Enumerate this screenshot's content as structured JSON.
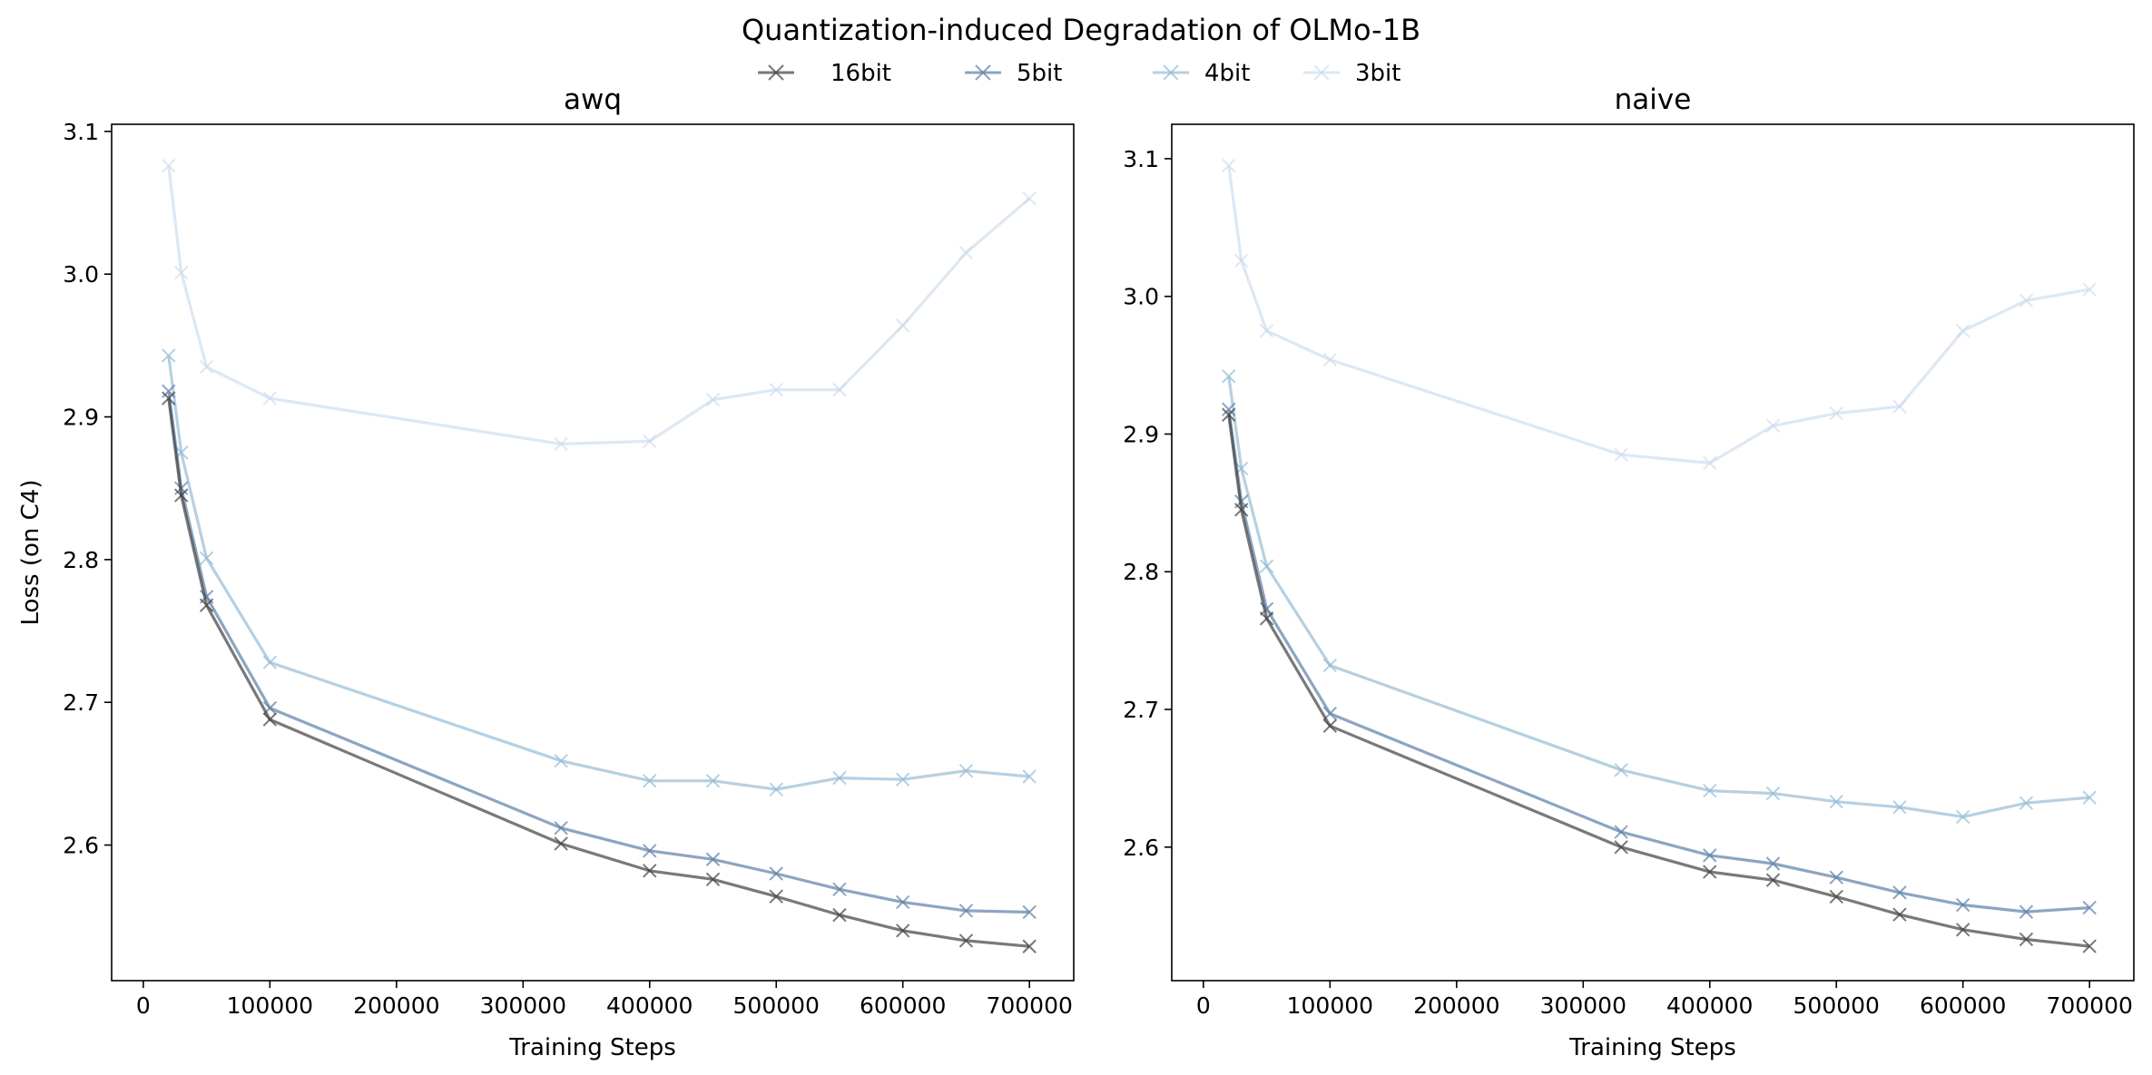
{
  "suptitle": "Quantization-induced Degradation of OLMo-1B",
  "legend": [
    {
      "label": "16bit",
      "color": "#404040",
      "opacity": 0.7
    },
    {
      "label": "5bit",
      "color": "#5b7fa6",
      "opacity": 0.7
    },
    {
      "label": "4bit",
      "color": "#8fb7d3",
      "opacity": 0.65
    },
    {
      "label": "3bit",
      "color": "#c6d9ec",
      "opacity": 0.6
    }
  ],
  "chart_data": [
    {
      "type": "line",
      "title": "awq",
      "xlabel": "Training Steps",
      "ylabel": "Loss (on C4)",
      "xlim": [
        -25000,
        735000
      ],
      "ylim": [
        2.505,
        3.105
      ],
      "xticks": [
        0,
        100000,
        200000,
        300000,
        400000,
        500000,
        600000,
        700000
      ],
      "xtick_labels": [
        "0",
        "100000",
        "200000",
        "300000",
        "400000",
        "500000",
        "600000",
        "700000"
      ],
      "yticks": [
        2.6,
        2.7,
        2.8,
        2.9,
        3.0,
        3.1
      ],
      "ytick_labels": [
        "2.6",
        "2.7",
        "2.8",
        "2.9",
        "3.0",
        "3.1"
      ],
      "x": [
        20000,
        30000,
        50000,
        100000,
        330000,
        400000,
        450000,
        500000,
        550000,
        600000,
        650000,
        700000
      ],
      "series": [
        {
          "name": "16bit",
          "values": [
            2.913,
            2.845,
            2.768,
            2.688,
            2.601,
            2.582,
            2.576,
            2.564,
            2.551,
            2.54,
            2.533,
            2.529
          ]
        },
        {
          "name": "5bit",
          "values": [
            2.918,
            2.85,
            2.774,
            2.696,
            2.612,
            2.596,
            2.59,
            2.58,
            2.569,
            2.56,
            2.554,
            2.553
          ]
        },
        {
          "name": "4bit",
          "values": [
            2.943,
            2.875,
            2.801,
            2.728,
            2.659,
            2.645,
            2.645,
            2.639,
            2.647,
            2.646,
            2.652,
            2.648
          ]
        },
        {
          "name": "3bit",
          "values": [
            3.076,
            3.001,
            2.935,
            2.913,
            2.881,
            2.883,
            2.912,
            2.919,
            2.919,
            2.964,
            3.015,
            3.053
          ]
        }
      ]
    },
    {
      "type": "line",
      "title": "naive",
      "xlabel": "Training Steps",
      "ylabel": "",
      "xlim": [
        -25000,
        735000
      ],
      "ylim": [
        2.503,
        3.125
      ],
      "xticks": [
        0,
        100000,
        200000,
        300000,
        400000,
        500000,
        600000,
        700000
      ],
      "xtick_labels": [
        "0",
        "100000",
        "200000",
        "300000",
        "400000",
        "500000",
        "600000",
        "700000"
      ],
      "yticks": [
        2.6,
        2.7,
        2.8,
        2.9,
        3.0,
        3.1
      ],
      "ytick_labels": [
        "2.6",
        "2.7",
        "2.8",
        "2.9",
        "3.0",
        "3.1"
      ],
      "x": [
        20000,
        30000,
        50000,
        100000,
        330000,
        400000,
        450000,
        500000,
        550000,
        600000,
        650000,
        700000
      ],
      "series": [
        {
          "name": "16bit",
          "values": [
            2.914,
            2.845,
            2.766,
            2.688,
            2.6,
            2.582,
            2.576,
            2.564,
            2.551,
            2.54,
            2.533,
            2.528
          ]
        },
        {
          "name": "5bit",
          "values": [
            2.918,
            2.851,
            2.773,
            2.697,
            2.611,
            2.594,
            2.588,
            2.578,
            2.567,
            2.558,
            2.553,
            2.556
          ]
        },
        {
          "name": "4bit",
          "values": [
            2.942,
            2.875,
            2.804,
            2.732,
            2.656,
            2.641,
            2.639,
            2.633,
            2.629,
            2.622,
            2.632,
            2.636
          ]
        },
        {
          "name": "3bit",
          "values": [
            3.095,
            3.026,
            2.975,
            2.954,
            2.885,
            2.879,
            2.906,
            2.915,
            2.92,
            2.975,
            2.997,
            3.005
          ]
        }
      ]
    }
  ]
}
